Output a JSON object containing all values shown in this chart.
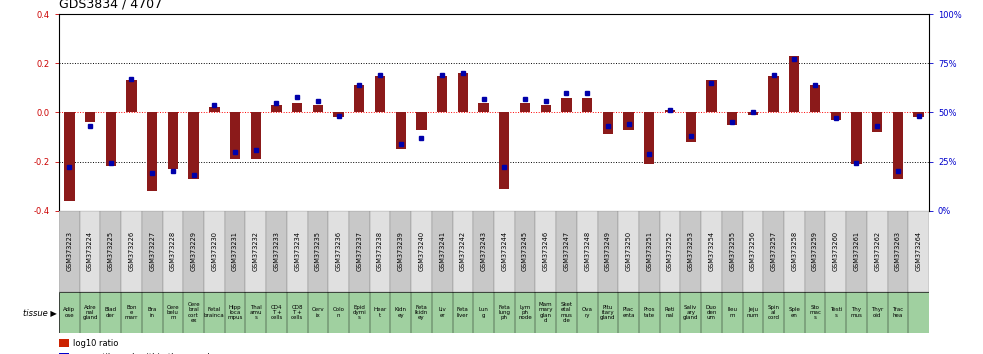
{
  "title": "GDS3834 / 4707",
  "gsm_ids": [
    "GSM373223",
    "GSM373224",
    "GSM373225",
    "GSM373226",
    "GSM373227",
    "GSM373228",
    "GSM373229",
    "GSM373230",
    "GSM373231",
    "GSM373232",
    "GSM373233",
    "GSM373234",
    "GSM373235",
    "GSM373236",
    "GSM373237",
    "GSM373238",
    "GSM373239",
    "GSM373240",
    "GSM373241",
    "GSM373242",
    "GSM373243",
    "GSM373244",
    "GSM373245",
    "GSM373246",
    "GSM373247",
    "GSM373248",
    "GSM373249",
    "GSM373250",
    "GSM373251",
    "GSM373252",
    "GSM373253",
    "GSM373254",
    "GSM373255",
    "GSM373256",
    "GSM373257",
    "GSM373258",
    "GSM373259",
    "GSM373260",
    "GSM373261",
    "GSM373262",
    "GSM373263",
    "GSM373264"
  ],
  "tissue_labels": [
    "Adip\nose",
    "Adre\nnal\ngland",
    "Blad\nder",
    "Bon\ne\nmarr",
    "Bra\nin",
    "Cere\nbelu\nm",
    "Cere\nbral\ncort\nex",
    "Fetal\nbrainca",
    "Hipp\nloca\nmpus",
    "Thal\namu\ns",
    "CD4\nT +\ncells",
    "CD8\nT +\ncells",
    "Cerv\nix",
    "Colo\nn",
    "Epid\ndymi\ns",
    "Hear\nt",
    "Kidn\ney",
    "Feta\nlkidn\ney",
    "Liv\ner",
    "Feta\nliver",
    "Lun\ng",
    "Feta\nlung\nph",
    "Lym\nph\nnode",
    "Mam\nmary\nglan\nd",
    "Sket\netal\nmus\ncle",
    "Ova\nry",
    "Pitu\nitary\ngland",
    "Plac\nenta",
    "Pros\ntate",
    "Reti\nnal",
    "Saliv\nary\ngland",
    "Duo\nden\num",
    "Ileu\nm",
    "Jeju\nnum",
    "Spin\nal\ncord",
    "Sple\nen",
    "Sto\nmac\ns",
    "Testi\ns",
    "Thy\nmus",
    "Thyr\noid",
    "Trac\nhea",
    ""
  ],
  "log10_ratio": [
    -0.36,
    -0.04,
    -0.22,
    0.13,
    -0.32,
    -0.23,
    -0.27,
    0.02,
    -0.19,
    -0.19,
    0.03,
    0.04,
    0.03,
    -0.02,
    0.11,
    0.15,
    -0.15,
    -0.07,
    0.15,
    0.16,
    0.04,
    -0.31,
    0.04,
    0.03,
    0.06,
    0.06,
    -0.09,
    -0.07,
    -0.21,
    0.01,
    -0.12,
    0.13,
    -0.05,
    -0.01,
    0.15,
    0.23,
    0.11,
    -0.03,
    -0.21,
    -0.08,
    -0.27,
    -0.02
  ],
  "percentile_rank": [
    22,
    43,
    24,
    67,
    19,
    20,
    18,
    54,
    30,
    31,
    55,
    58,
    56,
    48,
    64,
    69,
    34,
    37,
    69,
    70,
    57,
    22,
    57,
    56,
    60,
    60,
    43,
    44,
    29,
    51,
    38,
    65,
    45,
    50,
    69,
    77,
    64,
    47,
    24,
    43,
    20,
    48
  ],
  "bar_color": "#8b1a1a",
  "dot_color": "#0000aa",
  "ylim": [
    -0.4,
    0.4
  ],
  "left_yticks": [
    -0.4,
    -0.2,
    0.0,
    0.2,
    0.4
  ],
  "right_yticks": [
    0,
    25,
    50,
    75,
    100
  ],
  "grid_lines_black": [
    -0.2,
    0.2
  ],
  "grid_line_red": 0.0,
  "gsm_cell_colors": [
    "#c8c8c8",
    "#e0e0e0"
  ],
  "tissue_cell_color": "#a0d0a0",
  "tissue_label": "tissue",
  "legend_red": "#cc2200",
  "legend_blue": "#0000cc",
  "left_tick_color": "#cc0000",
  "right_tick_color": "#0000cc",
  "title_fontsize": 9,
  "tick_fontsize": 6,
  "gsm_fontsize": 4.8,
  "tissue_fontsize": 4.0
}
